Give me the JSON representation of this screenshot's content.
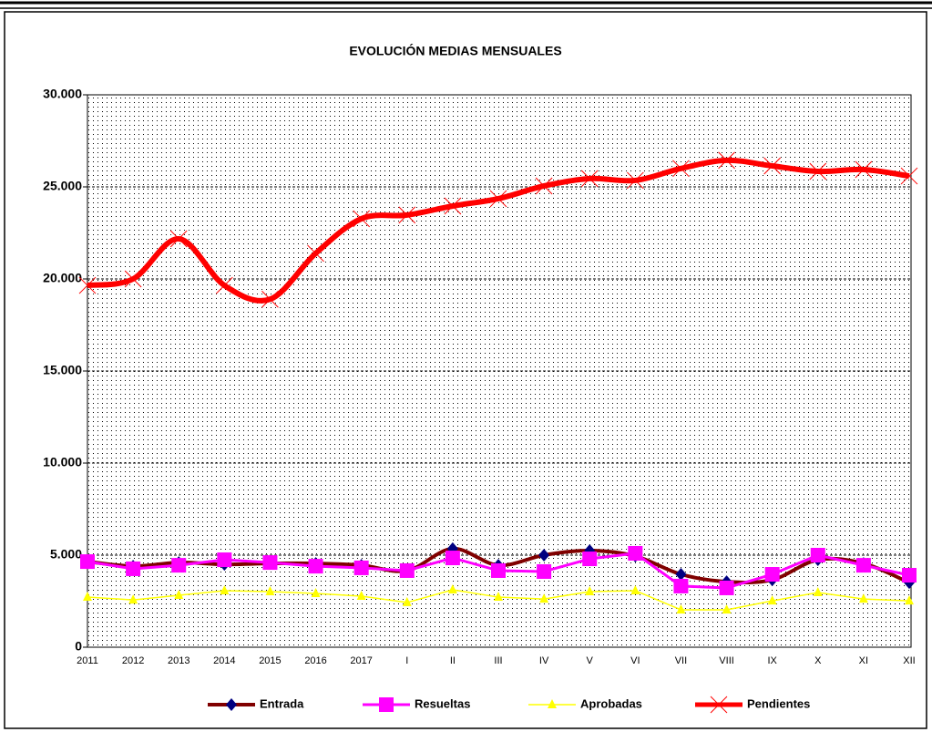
{
  "chart_data": {
    "type": "line",
    "title": "EVOLUCIÓN MEDIAS MENSUALES",
    "categories": [
      "2011",
      "2012",
      "2013",
      "2014",
      "2015",
      "2016",
      "2017",
      "I",
      "II",
      "III",
      "IV",
      "V",
      "VI",
      "VII",
      "VIII",
      "IX",
      "X",
      "XI",
      "XII"
    ],
    "series": [
      {
        "name": "Entrada",
        "color": "#800000",
        "marker_color": "#000080",
        "marker": "diamond",
        "smooth": true,
        "values": [
          4650,
          4400,
          4600,
          4500,
          4550,
          4550,
          4450,
          4160,
          5350,
          4450,
          5000,
          5250,
          4950,
          3960,
          3560,
          3660,
          4750,
          4550,
          3510
        ]
      },
      {
        "name": "Resueltas",
        "color": "#ff00ff",
        "marker_color": "#ff00ff",
        "marker": "square",
        "smooth": false,
        "values": [
          4650,
          4260,
          4450,
          4750,
          4600,
          4400,
          4310,
          4160,
          4850,
          4160,
          4110,
          4800,
          5100,
          3320,
          3220,
          3960,
          5000,
          4450,
          3910
        ]
      },
      {
        "name": "Aprobadas",
        "color": "#ffff00",
        "marker_color": "#ffff00",
        "marker": "triangle",
        "smooth": false,
        "values": [
          2720,
          2570,
          2820,
          3070,
          3020,
          2920,
          2770,
          2430,
          3120,
          2720,
          2620,
          3020,
          3070,
          2030,
          2030,
          2520,
          2970,
          2620,
          2520
        ]
      },
      {
        "name": "Pendientes",
        "color": "#ff0000",
        "marker_color": "#ff0000",
        "marker": "x",
        "smooth": true,
        "values": [
          19650,
          20000,
          22180,
          19650,
          18900,
          21390,
          23270,
          23470,
          23960,
          24360,
          25050,
          25450,
          25350,
          26000,
          26440,
          26140,
          25840,
          25940,
          25590
        ]
      }
    ],
    "ylim": [
      0,
      30000
    ],
    "yticks": [
      0,
      {
        "value": 5000,
        "label": "5.000"
      },
      {
        "value": 10000,
        "label": "10.000"
      },
      {
        "value": 15000,
        "label": "15.000"
      },
      {
        "value": 20000,
        "label": "20.000"
      },
      {
        "value": 25000,
        "label": "25.000"
      },
      {
        "value": 30000,
        "label": "30.000"
      }
    ],
    "grid": true,
    "legend": "bottom"
  }
}
